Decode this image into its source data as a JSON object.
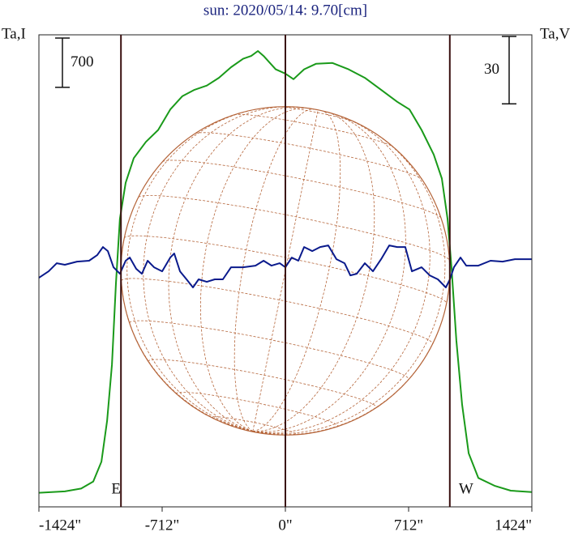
{
  "chart_data": {
    "type": "line",
    "title": "sun: 2020/05/14: 9.70[cm]",
    "y_label": "Ta,I",
    "y2_label": "Ta,V",
    "xlim": [
      -1424,
      1424
    ],
    "xticks": [
      {
        "value": -1424,
        "label": "-1424\""
      },
      {
        "value": -712,
        "label": "-712\""
      },
      {
        "value": 0,
        "label": "0\""
      },
      {
        "value": 712,
        "label": "712\""
      },
      {
        "value": 1424,
        "label": "1424\""
      }
    ],
    "ylim": [
      -200,
      6500
    ],
    "y2lim": [
      -105,
      105
    ],
    "scale_bars": [
      {
        "value": 700,
        "axis": "y"
      },
      {
        "value": 30,
        "axis": "y2"
      }
    ],
    "vlines": [
      {
        "x": -950,
        "label": "E"
      },
      {
        "x": 0
      },
      {
        "x": 950,
        "label": "W"
      }
    ],
    "disk_radius": 950,
    "series": [
      {
        "color": "#1a9a1a",
        "x": [
          -1424,
          -1274,
          -1180,
          -1110,
          -1063,
          -1030,
          -1002,
          -979,
          -956,
          -923,
          -876,
          -806,
          -735,
          -665,
          -595,
          -525,
          -454,
          -384,
          -314,
          -244,
          -197,
          -159,
          -126,
          -56,
          0,
          47,
          108,
          178,
          272,
          365,
          459,
          553,
          646,
          717,
          787,
          857,
          904,
          937,
          960,
          988,
          1021,
          1059,
          1115,
          1208,
          1302,
          1424
        ],
        "values": [
          0,
          20,
          60,
          160,
          440,
          1020,
          1820,
          2970,
          3890,
          4400,
          4750,
          4980,
          5150,
          5440,
          5630,
          5720,
          5780,
          5890,
          6040,
          6160,
          6200,
          6270,
          6200,
          6010,
          5950,
          5870,
          6010,
          6090,
          6100,
          6010,
          5890,
          5720,
          5550,
          5440,
          5150,
          4800,
          4460,
          3890,
          3200,
          2160,
          1250,
          560,
          210,
          100,
          30,
          10
        ]
      },
      {
        "color": "#0a1a8c",
        "axis": "y2",
        "x": [
          -1424,
          -1368,
          -1321,
          -1274,
          -1204,
          -1134,
          -1087,
          -1054,
          -1026,
          -993,
          -956,
          -923,
          -899,
          -862,
          -829,
          -796,
          -759,
          -712,
          -665,
          -642,
          -609,
          -571,
          -534,
          -501,
          -454,
          -408,
          -361,
          -314,
          -244,
          -173,
          -126,
          -80,
          -33,
          0,
          37,
          75,
          108,
          155,
          201,
          248,
          295,
          342,
          375,
          412,
          459,
          506,
          553,
          600,
          646,
          693,
          731,
          787,
          834,
          881,
          927,
          951,
          974,
          1012,
          1045,
          1115,
          1185,
          1255,
          1326,
          1396,
          1424
        ],
        "values": [
          -3.1,
          -0.2,
          3.4,
          2.7,
          4.1,
          4.5,
          7.0,
          10.6,
          8.8,
          1.6,
          -1.3,
          4.5,
          5.9,
          0.9,
          -1.3,
          4.5,
          1.6,
          -0.2,
          5.9,
          7.7,
          -0.2,
          -3.8,
          -7.4,
          -3.8,
          -4.9,
          -3.8,
          -3.8,
          1.6,
          1.6,
          2.3,
          4.5,
          2.3,
          3.4,
          1.6,
          5.9,
          4.5,
          10.6,
          8.8,
          10.6,
          11.3,
          5.2,
          3.4,
          -2.0,
          -1.3,
          3.4,
          -0.2,
          5.2,
          11.3,
          10.6,
          10.6,
          -0.2,
          1.6,
          -2.0,
          -3.8,
          -7.4,
          -3.8,
          1.6,
          5.9,
          2.3,
          2.3,
          4.5,
          4.1,
          5.2,
          5.2,
          5.2
        ]
      }
    ]
  }
}
